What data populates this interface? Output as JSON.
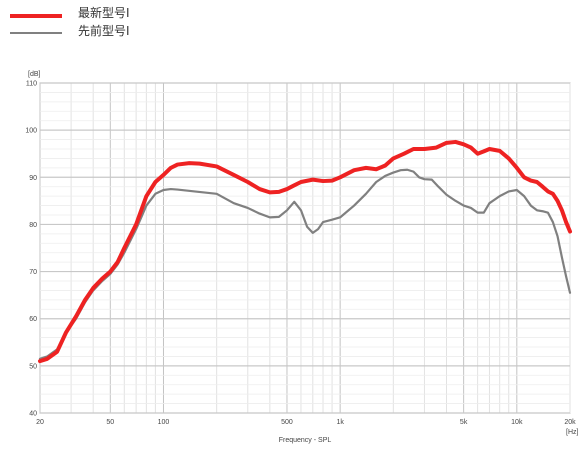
{
  "legend": {
    "items": [
      {
        "label": "最新型号I",
        "color": "#ee2222"
      },
      {
        "label": "先前型号I",
        "color": "#808080"
      }
    ]
  },
  "chart_data": {
    "type": "line",
    "xscale": "log",
    "xlim": [
      20,
      20000
    ],
    "ylim": [
      40,
      110
    ],
    "ylabel": "[dB]",
    "xlabel": "Frequency - SPL",
    "xunit": "[Hz]",
    "grid": true,
    "y_ticks": [
      40,
      50,
      60,
      70,
      80,
      90,
      100,
      110
    ],
    "x_ticks": [
      {
        "value": 20,
        "label": "20"
      },
      {
        "value": 50,
        "label": "50"
      },
      {
        "value": 100,
        "label": "100"
      },
      {
        "value": 500,
        "label": "500"
      },
      {
        "value": 1000,
        "label": "1k"
      },
      {
        "value": 5000,
        "label": "5k"
      },
      {
        "value": 10000,
        "label": "10k"
      },
      {
        "value": 20000,
        "label": "20k"
      }
    ],
    "series": [
      {
        "name": "最新型号I",
        "color": "#ee2222",
        "points": [
          [
            20,
            51
          ],
          [
            22,
            51.5
          ],
          [
            25,
            53
          ],
          [
            28,
            57
          ],
          [
            32,
            60.5
          ],
          [
            36,
            64
          ],
          [
            40,
            66.5
          ],
          [
            45,
            68.5
          ],
          [
            50,
            70
          ],
          [
            55,
            72
          ],
          [
            60,
            75
          ],
          [
            70,
            80
          ],
          [
            80,
            86
          ],
          [
            90,
            89
          ],
          [
            100,
            90.5
          ],
          [
            110,
            92
          ],
          [
            120,
            92.7
          ],
          [
            140,
            93
          ],
          [
            160,
            92.9
          ],
          [
            200,
            92.3
          ],
          [
            250,
            90.5
          ],
          [
            300,
            89
          ],
          [
            350,
            87.5
          ],
          [
            400,
            86.8
          ],
          [
            450,
            86.9
          ],
          [
            500,
            87.5
          ],
          [
            550,
            88.3
          ],
          [
            600,
            89
          ],
          [
            700,
            89.5
          ],
          [
            800,
            89.2
          ],
          [
            900,
            89.3
          ],
          [
            1000,
            90
          ],
          [
            1200,
            91.5
          ],
          [
            1400,
            92
          ],
          [
            1600,
            91.7
          ],
          [
            1800,
            92.5
          ],
          [
            2000,
            94
          ],
          [
            2300,
            95
          ],
          [
            2600,
            96
          ],
          [
            3000,
            96
          ],
          [
            3500,
            96.3
          ],
          [
            4000,
            97.3
          ],
          [
            4500,
            97.5
          ],
          [
            5000,
            97
          ],
          [
            5500,
            96.3
          ],
          [
            6000,
            95
          ],
          [
            6500,
            95.5
          ],
          [
            7000,
            96
          ],
          [
            8000,
            95.6
          ],
          [
            9000,
            94
          ],
          [
            10000,
            92
          ],
          [
            11000,
            90
          ],
          [
            12000,
            89.3
          ],
          [
            13000,
            89
          ],
          [
            14000,
            88
          ],
          [
            15000,
            87
          ],
          [
            16000,
            86.5
          ],
          [
            17000,
            85
          ],
          [
            18000,
            83
          ],
          [
            19000,
            80.5
          ],
          [
            20000,
            78.5
          ]
        ]
      },
      {
        "name": "先前型号I",
        "color": "#808080",
        "points": [
          [
            20,
            51.5
          ],
          [
            22,
            52
          ],
          [
            25,
            53.5
          ],
          [
            28,
            57
          ],
          [
            32,
            60
          ],
          [
            36,
            63.5
          ],
          [
            40,
            66
          ],
          [
            45,
            68
          ],
          [
            50,
            69.5
          ],
          [
            55,
            71.5
          ],
          [
            60,
            74
          ],
          [
            70,
            79
          ],
          [
            80,
            84
          ],
          [
            90,
            86.5
          ],
          [
            100,
            87.3
          ],
          [
            110,
            87.5
          ],
          [
            120,
            87.4
          ],
          [
            150,
            87
          ],
          [
            200,
            86.5
          ],
          [
            250,
            84.5
          ],
          [
            300,
            83.5
          ],
          [
            350,
            82.3
          ],
          [
            400,
            81.5
          ],
          [
            450,
            81.6
          ],
          [
            500,
            83
          ],
          [
            550,
            84.8
          ],
          [
            600,
            83
          ],
          [
            650,
            79.5
          ],
          [
            700,
            78.2
          ],
          [
            750,
            79
          ],
          [
            800,
            80.5
          ],
          [
            900,
            81
          ],
          [
            1000,
            81.5
          ],
          [
            1200,
            84
          ],
          [
            1400,
            86.5
          ],
          [
            1600,
            89
          ],
          [
            1800,
            90.3
          ],
          [
            2000,
            91
          ],
          [
            2200,
            91.5
          ],
          [
            2400,
            91.6
          ],
          [
            2600,
            91.2
          ],
          [
            2800,
            90
          ],
          [
            3000,
            89.6
          ],
          [
            3300,
            89.5
          ],
          [
            3600,
            88
          ],
          [
            4000,
            86.3
          ],
          [
            4500,
            85
          ],
          [
            5000,
            84
          ],
          [
            5500,
            83.5
          ],
          [
            6000,
            82.5
          ],
          [
            6500,
            82.5
          ],
          [
            7000,
            84.5
          ],
          [
            8000,
            86
          ],
          [
            9000,
            87
          ],
          [
            10000,
            87.3
          ],
          [
            11000,
            86
          ],
          [
            12000,
            84
          ],
          [
            13000,
            83
          ],
          [
            14000,
            82.8
          ],
          [
            15000,
            82.5
          ],
          [
            16000,
            80.5
          ],
          [
            17000,
            77.5
          ],
          [
            18000,
            73
          ],
          [
            19000,
            69
          ],
          [
            20000,
            65.5
          ]
        ]
      }
    ]
  }
}
